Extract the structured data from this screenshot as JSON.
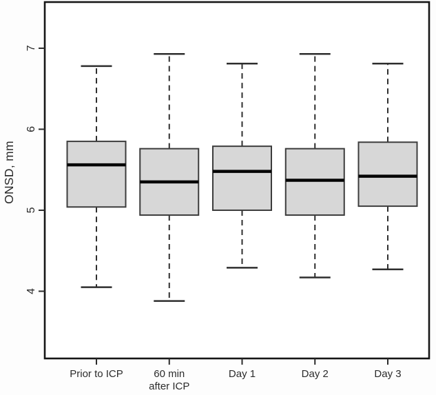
{
  "figure": {
    "background": "#fdfdfd",
    "title": ""
  },
  "chart_data": {
    "type": "boxplot",
    "title": "",
    "xlabel": "",
    "ylabel": "ONSD, mm",
    "ylim": [
      3.17,
      7.57
    ],
    "yticks": [
      4,
      5,
      6,
      7
    ],
    "grid": false,
    "legend": "none",
    "frame": "full-box",
    "categories": [
      "Prior to ICP",
      "60 min\nafter ICP",
      "Day 1",
      "Day 2",
      "Day 3"
    ],
    "series": [
      {
        "category": "Prior to ICP",
        "whisker_low": 4.05,
        "q1": 5.04,
        "median": 5.56,
        "q3": 5.85,
        "whisker_high": 6.78
      },
      {
        "category": "60 min after ICP",
        "whisker_low": 3.88,
        "q1": 4.94,
        "median": 5.35,
        "q3": 5.76,
        "whisker_high": 6.93
      },
      {
        "category": "Day 1",
        "whisker_low": 4.29,
        "q1": 5.0,
        "median": 5.48,
        "q3": 5.79,
        "whisker_high": 6.81
      },
      {
        "category": "Day 2",
        "whisker_low": 4.17,
        "q1": 4.94,
        "median": 5.37,
        "q3": 5.76,
        "whisker_high": 6.93
      },
      {
        "category": "Day 3",
        "whisker_low": 4.27,
        "q1": 5.05,
        "median": 5.42,
        "q3": 5.84,
        "whisker_high": 6.81
      }
    ],
    "colors": {
      "box_fill": "#d7d7d7",
      "box_stroke": "#3c3c3c",
      "median": "#050505",
      "whisker": "#2e2e2e",
      "frame": "#161616",
      "tick": "#2b2b2b",
      "text": "#2b2b2b"
    }
  }
}
